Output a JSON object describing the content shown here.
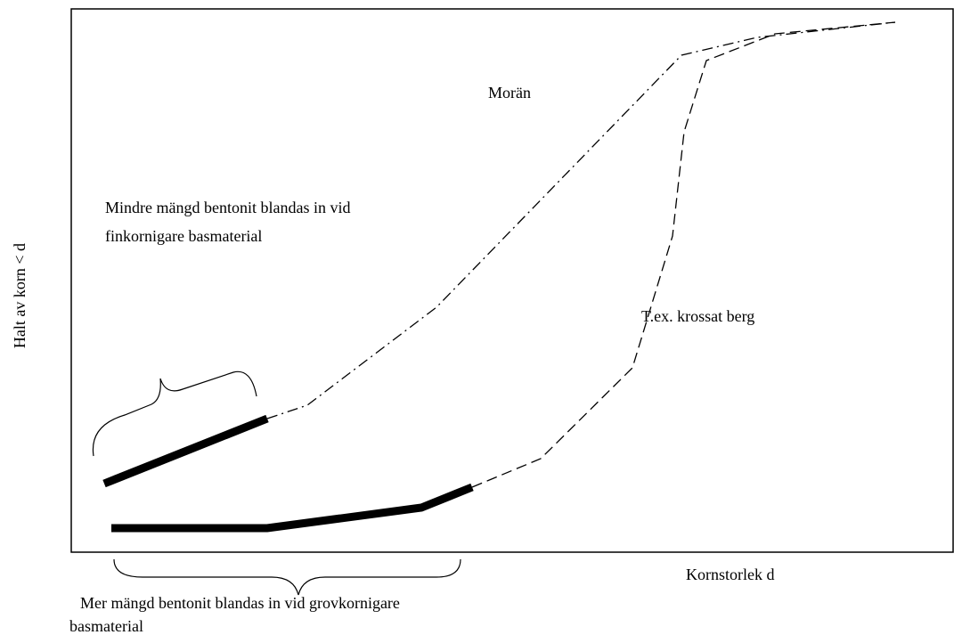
{
  "axis_labels": {
    "y": "Halt av korn < d",
    "x": "Kornstorlek d"
  },
  "curve_labels": {
    "moraine": "Morän",
    "crushed_rock": "T.ex. krossat berg"
  },
  "annotations": {
    "fine": [
      "Mindre mängd bentonit blandas in vid",
      "finkornigare basmaterial"
    ],
    "coarse": [
      "Mer mängd bentonit blandas in vid grovkornigare",
      "basmaterial"
    ]
  }
}
